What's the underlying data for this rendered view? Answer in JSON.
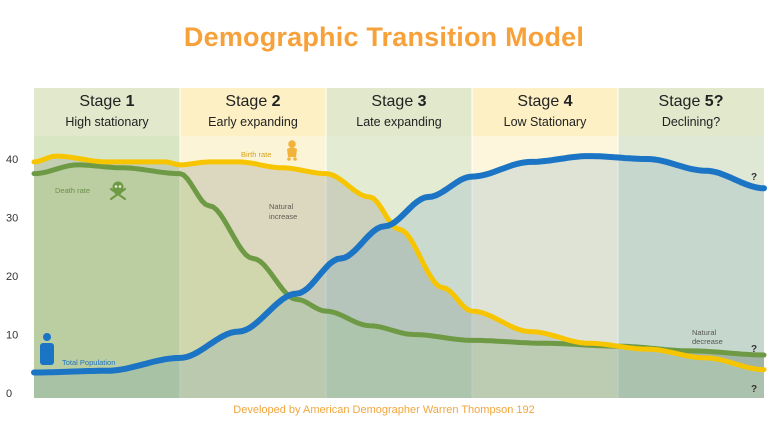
{
  "title": "Demographic Transition Model",
  "credit": "Developed by American Demographer Warren Thompson 192",
  "colors": {
    "title": "#f7a13a",
    "credit": "#f2a63d",
    "birth_rate": "#f7c500",
    "death_rate": "#6f9a45",
    "total_population": "#1c74c4",
    "stage_band_green": "#dfe8c8",
    "stage_band_yellow": "#fdf0c2"
  },
  "stages": [
    {
      "name": "Stage",
      "number": "1",
      "subtitle": "High stationary"
    },
    {
      "name": "Stage",
      "number": "2",
      "subtitle": "Early expanding"
    },
    {
      "name": "Stage",
      "number": "3",
      "subtitle": "Late expanding"
    },
    {
      "name": "Stage",
      "number": "4",
      "subtitle": "Low Stationary"
    },
    {
      "name": "Stage",
      "number": "5?",
      "subtitle": "Declining?"
    }
  ],
  "annotations": {
    "birth_rate": "Birth rate",
    "death_rate": "Death rate",
    "natural_increase_1": "Natural",
    "natural_increase_2": "increase",
    "natural_decrease_1": "Natural",
    "natural_decrease_2": "decrease",
    "total_population": "Total Population",
    "question_mark": "?"
  },
  "icons": {
    "birth": "baby-icon",
    "death": "skull-crossbones-icon",
    "population": "person-icon"
  },
  "chart_data": {
    "type": "line",
    "title": "Demographic Transition Model",
    "xlabel": "",
    "ylabel": "",
    "ylim": [
      0,
      44
    ],
    "yticks": [
      "40",
      "30",
      "20",
      "10",
      "0"
    ],
    "yticks_values": [
      40,
      30,
      20,
      10,
      0
    ],
    "categories": [
      "Stage 1",
      "Stage 2",
      "Stage 3",
      "Stage 4",
      "Stage 5?"
    ],
    "x_range": [
      0,
      5
    ],
    "series": [
      {
        "name": "Birth rate",
        "x": [
          0,
          0.15,
          0.5,
          0.9,
          1.0,
          1.2,
          1.4,
          1.7,
          2.0,
          2.3,
          2.5,
          2.8,
          3.0,
          3.4,
          3.8,
          4.2,
          4.6,
          5.0
        ],
        "values": [
          39.5,
          40.5,
          39.5,
          39.5,
          39.0,
          39.5,
          39.5,
          38.5,
          37.5,
          33.5,
          28,
          18,
          14,
          10.5,
          8.5,
          7.5,
          6.0,
          4.0
        ]
      },
      {
        "name": "Death rate",
        "x": [
          0,
          0.3,
          0.6,
          1.0,
          1.2,
          1.5,
          1.8,
          2.0,
          2.3,
          2.6,
          3.0,
          3.5,
          4.0,
          4.5,
          5.0
        ],
        "values": [
          37.5,
          39.0,
          38.5,
          37.5,
          32.0,
          23.0,
          16.0,
          14.0,
          11.5,
          10.0,
          9.0,
          8.5,
          8.0,
          7.2,
          6.5
        ]
      },
      {
        "name": "Total Population",
        "x": [
          0,
          0.5,
          1.0,
          1.4,
          1.8,
          2.1,
          2.4,
          2.7,
          3.0,
          3.4,
          3.8,
          4.2,
          4.6,
          5.0
        ],
        "values": [
          3.5,
          3.8,
          6.0,
          10.5,
          17.0,
          23.0,
          28.5,
          33.5,
          37.0,
          39.5,
          40.5,
          40.0,
          38.0,
          35.0
        ]
      }
    ]
  }
}
